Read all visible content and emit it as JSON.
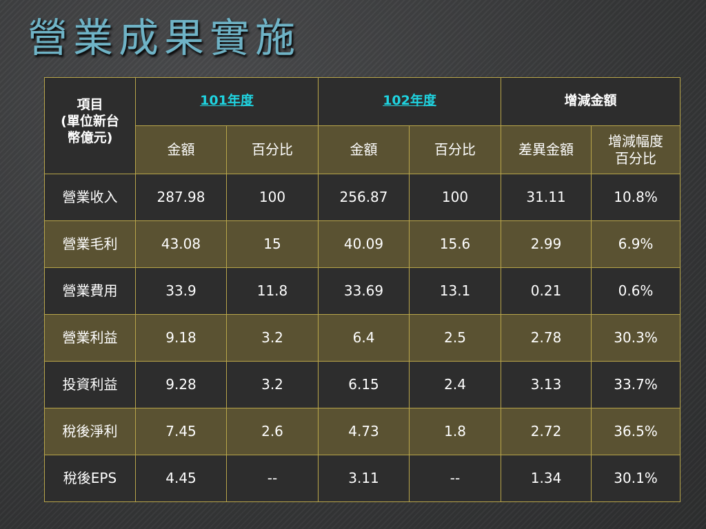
{
  "title": "營業成果實施",
  "table": {
    "header": {
      "item_label": "項目\n(單位新台\n幣億元)",
      "item_line1": "項目",
      "item_line2": "(單位新台",
      "item_line3": "幣億元)",
      "year1": "101年度",
      "year2": "102年度",
      "diff": "增減金額",
      "amount": "金額",
      "percent": "百分比",
      "diff_amount": "差異金額",
      "change_rate_line1": "增減幅度",
      "change_rate_line2": "百分比"
    },
    "rows": [
      {
        "item": "營業收入",
        "y1_amount": "287.98",
        "y1_pct": "100",
        "y2_amount": "256.87",
        "y2_pct": "100",
        "diff": "31.11",
        "rate": "10.8%"
      },
      {
        "item": "營業毛利",
        "y1_amount": "43.08",
        "y1_pct": "15",
        "y2_amount": "40.09",
        "y2_pct": "15.6",
        "diff": "2.99",
        "rate": "6.9%"
      },
      {
        "item": "營業費用",
        "y1_amount": "33.9",
        "y1_pct": "11.8",
        "y2_amount": "33.69",
        "y2_pct": "13.1",
        "diff": "0.21",
        "rate": "0.6%"
      },
      {
        "item": "營業利益",
        "y1_amount": "9.18",
        "y1_pct": "3.2",
        "y2_amount": "6.4",
        "y2_pct": "2.5",
        "diff": "2.78",
        "rate": "30.3%"
      },
      {
        "item": "投資利益",
        "y1_amount": "9.28",
        "y1_pct": "3.2",
        "y2_amount": "6.15",
        "y2_pct": "2.4",
        "diff": "3.13",
        "rate": "33.7%"
      },
      {
        "item": "稅後淨利",
        "y1_amount": "7.45",
        "y1_pct": "2.6",
        "y2_amount": "4.73",
        "y2_pct": "1.8",
        "diff": "2.72",
        "rate": "36.5%"
      },
      {
        "item": "稅後EPS",
        "y1_amount": "4.45",
        "y1_pct": "--",
        "y2_amount": "3.11",
        "y2_pct": "--",
        "diff": "1.34",
        "rate": "30.1%"
      }
    ]
  },
  "colors": {
    "title": "#6fb3c6",
    "year_link": "#1fd3e0",
    "row_dark": "#2d2d2d",
    "row_olive": "#5a5232",
    "border": "#b9a64a"
  }
}
